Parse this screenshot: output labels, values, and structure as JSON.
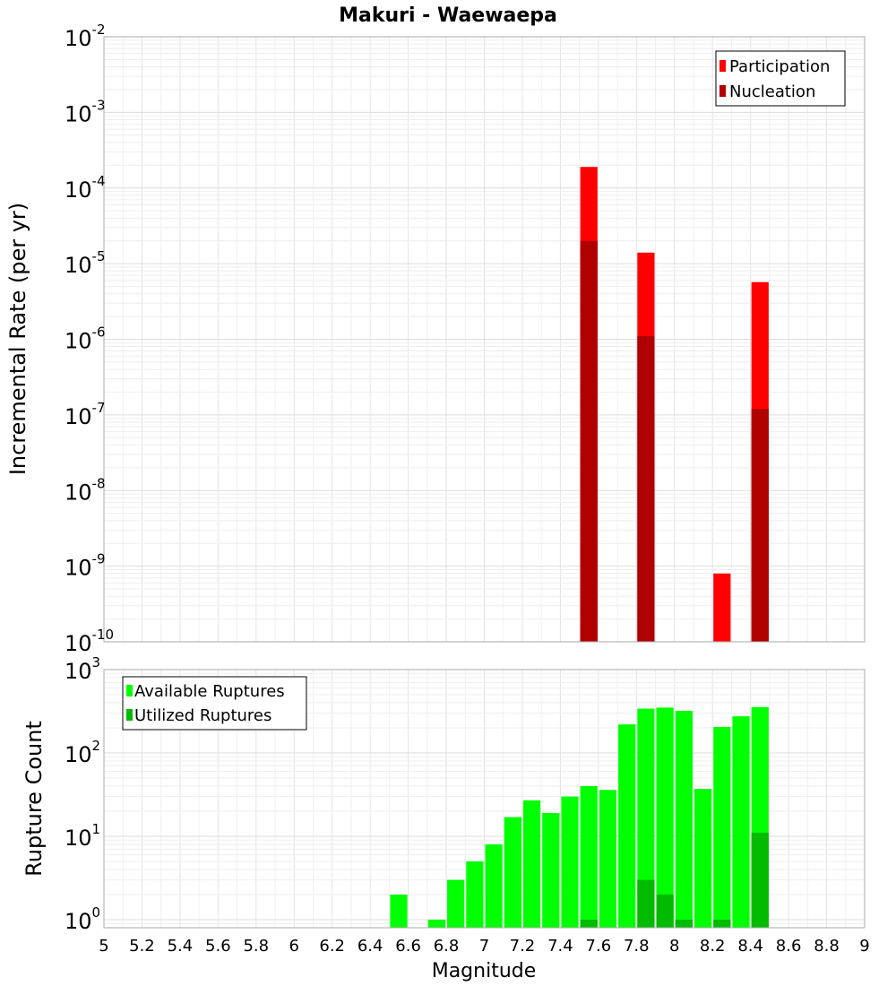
{
  "chart_data": [
    {
      "type": "bar",
      "title": "Makuri - Waewaepa",
      "ylabel": "Incremental Rate (per yr)",
      "yscale": "log",
      "ylim": [
        1e-10,
        0.01
      ],
      "xlim": [
        5,
        9
      ],
      "grid": true,
      "legend_position": "top-right",
      "series": [
        {
          "name": "Participation",
          "color": "#ff0000",
          "x": [
            7.55,
            7.85,
            8.25,
            8.45
          ],
          "values": [
            0.00019,
            1.4e-05,
            8e-10,
            5.7e-06
          ]
        },
        {
          "name": "Nucleation",
          "color": "#b00000",
          "x": [
            7.55,
            7.85,
            8.45
          ],
          "values": [
            2e-05,
            1.1e-06,
            1.2e-07
          ]
        }
      ]
    },
    {
      "type": "bar",
      "xlabel": "Magnitude",
      "ylabel": "Rupture Count",
      "yscale": "log",
      "ylim": [
        0.8,
        1000
      ],
      "xlim": [
        5,
        9
      ],
      "grid": true,
      "legend_position": "top-left",
      "x_ticks": [
        "5",
        "5.2",
        "5.4",
        "5.6",
        "5.8",
        "6",
        "6.2",
        "6.4",
        "6.6",
        "6.8",
        "7",
        "7.2",
        "7.4",
        "7.6",
        "7.8",
        "8",
        "8.2",
        "8.4",
        "8.6",
        "8.8",
        "9"
      ],
      "series": [
        {
          "name": "Available Ruptures",
          "color": "#00ff00",
          "x": [
            6.55,
            6.75,
            6.85,
            6.95,
            7.05,
            7.15,
            7.25,
            7.35,
            7.45,
            7.55,
            7.65,
            7.75,
            7.85,
            7.95,
            8.05,
            8.15,
            8.25,
            8.35,
            8.45
          ],
          "values": [
            2,
            1,
            3,
            5,
            8,
            17,
            27,
            19,
            30,
            40,
            36,
            220,
            340,
            350,
            320,
            37,
            205,
            275,
            355
          ]
        },
        {
          "name": "Utilized Ruptures",
          "color": "#00bb00",
          "x": [
            7.55,
            7.85,
            7.95,
            8.05,
            8.25,
            8.45
          ],
          "values": [
            1,
            3,
            2,
            1,
            1,
            11
          ]
        }
      ]
    }
  ]
}
